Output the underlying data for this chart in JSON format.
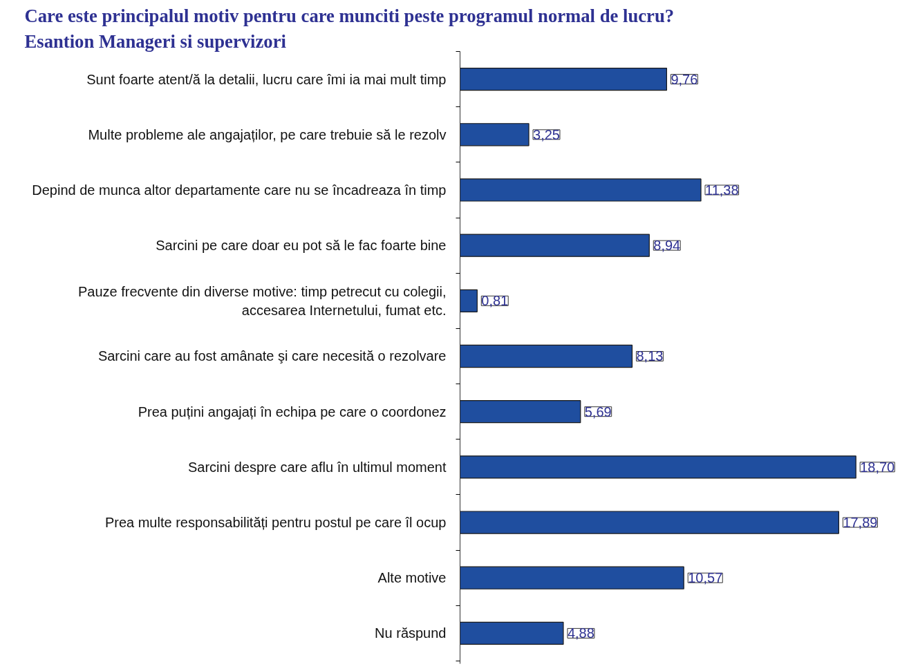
{
  "chart_data": {
    "type": "bar",
    "orientation": "horizontal",
    "title": "Care este principalul motiv pentru care munciti peste programul normal de lucru?",
    "subtitle": "Esantion Manageri si supervizori",
    "categories": [
      "Sunt foarte atent/ă la detalii, lucru care îmi ia mai mult timp",
      "Multe probleme ale angajaților, pe care trebuie să le rezolv",
      "Depind de munca altor departamente care nu se încadreaza în timp",
      "Sarcini pe care doar eu pot să le fac foarte bine",
      "Pauze frecvente din diverse motive: timp petrecut cu colegii,\naccesarea Internetului, fumat etc.",
      "Sarcini care au fost amânate şi care necesită o rezolvare",
      "Prea puțini angajați în echipa pe care o coordonez",
      "Sarcini despre care aflu în ultimul moment",
      "Prea multe responsabilități pentru postul pe care îl ocup",
      "Alte motive",
      "Nu răspund"
    ],
    "values": [
      9.76,
      3.25,
      11.38,
      8.94,
      0.81,
      8.13,
      5.69,
      18.7,
      17.89,
      10.57,
      4.88
    ],
    "value_labels": [
      "9,76",
      "3,25",
      "11,38",
      "8,94",
      "0,81",
      "8,13",
      "5,69",
      "18,70",
      "17,89",
      "10,57",
      "4,88"
    ],
    "color": "#1f4e9f",
    "grid": false,
    "tick_labels": "y"
  }
}
